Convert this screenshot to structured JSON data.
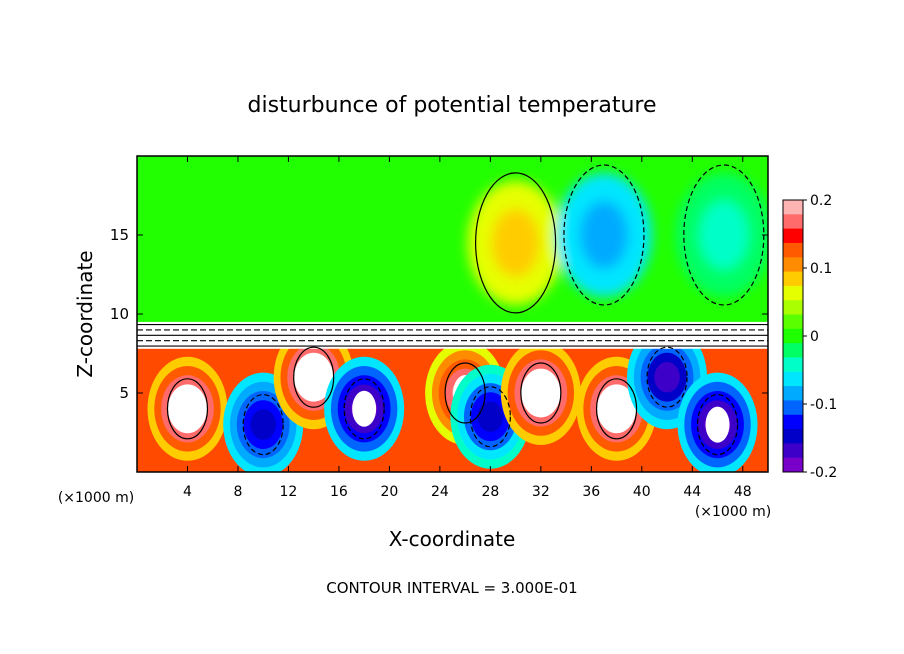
{
  "chart_data": {
    "type": "heatmap",
    "title": "disturbunce of potential temperature",
    "xlabel": "X-coordinate",
    "ylabel": "Z-coordinate",
    "x_unit_left": "(×1000 m)",
    "x_unit_right": "(×1000 m)",
    "footnote": "CONTOUR INTERVAL = 3.000E-01",
    "xlim": [
      0,
      50
    ],
    "ylim": [
      0,
      20
    ],
    "x_ticks": [
      4,
      8,
      12,
      16,
      20,
      24,
      28,
      32,
      36,
      40,
      44,
      48
    ],
    "y_ticks": [
      5,
      10,
      15
    ],
    "colorbar": {
      "min": -0.2,
      "max": 0.2,
      "tick_labels": [
        {
          "value": 0.2,
          "label": "0.2"
        },
        {
          "value": 0.1,
          "label": "0.1"
        },
        {
          "value": 0,
          "label": "0"
        },
        {
          "value": -0.1,
          "label": "-0.1"
        },
        {
          "value": -0.2,
          "label": "-0.2"
        }
      ],
      "colors": [
        "#ffb4b4",
        "#ff6a6a",
        "#ff0000",
        "#ff5a00",
        "#ff8c00",
        "#ffcc00",
        "#e6ff00",
        "#aaff00",
        "#5aff00",
        "#1eff00",
        "#00ff64",
        "#00ffc8",
        "#00e6ff",
        "#00aaff",
        "#0064ff",
        "#0000ff",
        "#0000c8",
        "#3c00c8",
        "#7800c8"
      ]
    },
    "field": {
      "upper_region": {
        "z_range": [
          9.5,
          20
        ],
        "description_value": 0
      },
      "inversion_layer": {
        "z_range": [
          7.8,
          9.5
        ]
      },
      "lower_region": {
        "z_range": [
          0,
          7.8
        ]
      },
      "features": [
        {
          "x": 30.0,
          "z": 14.5,
          "value": 0.06
        },
        {
          "x": 37.0,
          "z": 15.0,
          "value": -0.07
        },
        {
          "x": 46.5,
          "z": 15.0,
          "value": -0.03
        },
        {
          "x": 4.0,
          "z": 4.0,
          "value": 0.25
        },
        {
          "x": 10.0,
          "z": 3.0,
          "value": -0.16
        },
        {
          "x": 14.0,
          "z": 6.0,
          "value": 0.25
        },
        {
          "x": 18.0,
          "z": 4.0,
          "value": -0.2
        },
        {
          "x": 26.0,
          "z": 5.0,
          "value": 0.2
        },
        {
          "x": 28.0,
          "z": 3.5,
          "value": -0.15
        },
        {
          "x": 32.0,
          "z": 5.0,
          "value": 0.25
        },
        {
          "x": 38.0,
          "z": 4.0,
          "value": 0.25
        },
        {
          "x": 42.0,
          "z": 6.0,
          "value": -0.18
        },
        {
          "x": 46.0,
          "z": 3.0,
          "value": -0.2
        }
      ]
    }
  }
}
